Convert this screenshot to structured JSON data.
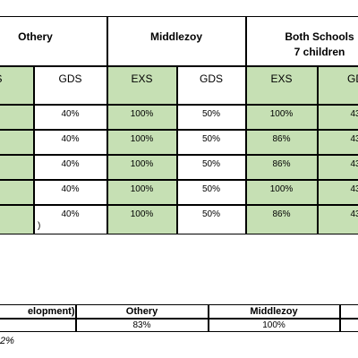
{
  "top_table": {
    "groups": [
      [
        "Othery"
      ],
      [
        "Middlezoy"
      ],
      [
        "Both Schools",
        "7 children"
      ]
    ],
    "subheaders": [
      "S",
      "GDS",
      "EXS",
      "GDS",
      "EXS",
      "GD"
    ],
    "rows": [
      [
        "%",
        "40%",
        "100%",
        "50%",
        "100%",
        "43"
      ],
      [
        "%",
        "40%",
        "100%",
        "50%",
        "86%",
        "43"
      ],
      [
        "%",
        "40%",
        "100%",
        "50%",
        "86%",
        "43"
      ],
      [
        "%",
        "40%",
        "100%",
        "50%",
        "100%",
        "43"
      ],
      [
        "%",
        "40%",
        "100%",
        "50%",
        "86%",
        "43"
      ]
    ],
    "note": ")"
  },
  "bottom_table": {
    "header": [
      "elopment)",
      "Othery",
      "Middlezoy"
    ],
    "row": [
      "83%",
      "100%"
    ]
  },
  "footnote": "2%"
}
